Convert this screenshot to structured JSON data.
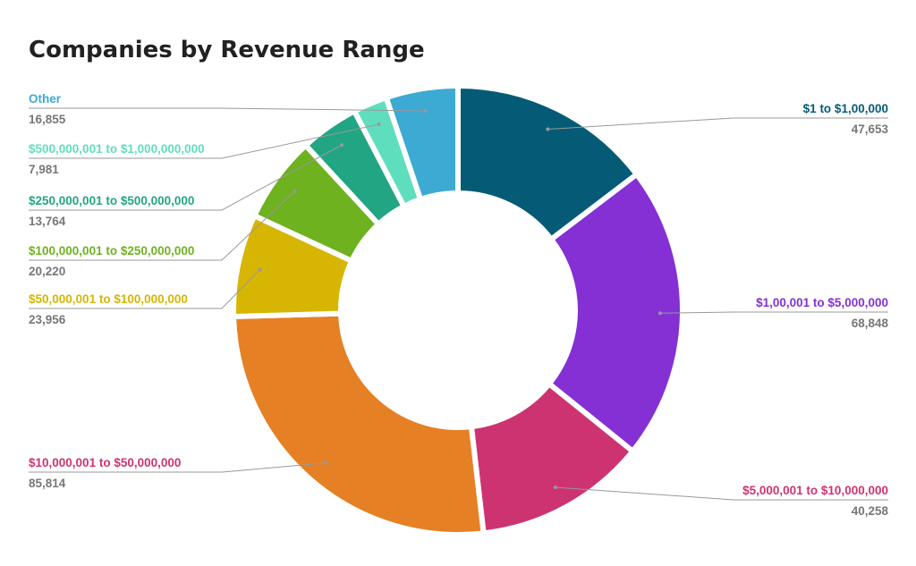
{
  "chart_data": {
    "type": "pie",
    "subtype": "donut",
    "title": "Companies by Revenue Range",
    "start_angle": "top, clockwise",
    "legend": "none (callout labels)",
    "slices": [
      {
        "label": "$1 to $1,00,000",
        "value": 47653,
        "value_text": "47,653",
        "color": "#055b75",
        "label_color": "#055b75"
      },
      {
        "label": "$1,00,001 to $5,000,000",
        "value": 68848,
        "value_text": "68,848",
        "color": "#8430d4",
        "label_color": "#8430d4"
      },
      {
        "label": "$5,000,001 to $10,000,000",
        "value": 40258,
        "value_text": "40,258",
        "color": "#cd3371",
        "label_color": "#cd3371"
      },
      {
        "label": "$10,000,001 to $50,000,000",
        "value": 85814,
        "value_text": "85,814",
        "color": "#e68024",
        "label_color": "#cd3371"
      },
      {
        "label": "$50,000,001 to $100,000,000",
        "value": 23956,
        "value_text": "23,956",
        "color": "#d6b602",
        "label_color": "#d6b602"
      },
      {
        "label": "$100,000,001 to $250,000,000",
        "value": 20220,
        "value_text": "20,220",
        "color": "#6eb21f",
        "label_color": "#6eb21f"
      },
      {
        "label": "$250,000,001 to $500,000,000",
        "value": 13764,
        "value_text": "13,764",
        "color": "#22a583",
        "label_color": "#22a583"
      },
      {
        "label": "$500,000,001 to $1,000,000,000",
        "value": 7981,
        "value_text": "7,981",
        "color": "#5fdebe",
        "label_color": "#5fdebe"
      },
      {
        "label": "Other",
        "value": 16855,
        "value_text": "16,855",
        "color": "#3daad3",
        "label_color": "#3daad3"
      }
    ]
  }
}
